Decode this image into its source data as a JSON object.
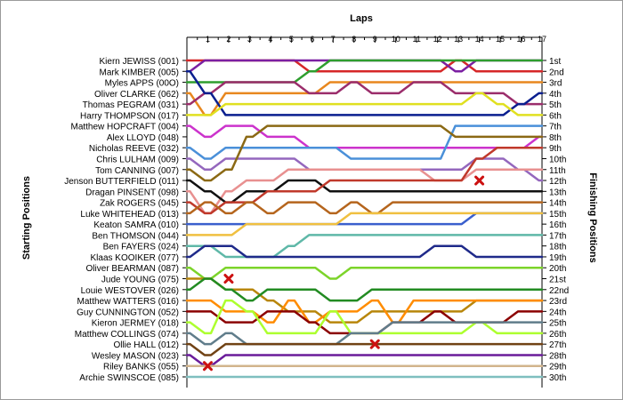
{
  "chart_data": {
    "type": "line",
    "title": "Laps",
    "ylabel_left": "Starting Positions",
    "ylabel_right": "Finishing Positions",
    "laps": [
      1,
      2,
      3,
      4,
      5,
      6,
      7,
      8,
      9,
      10,
      11,
      12,
      13,
      14,
      15,
      16,
      17
    ],
    "drivers": [
      "Kiern JEWISS (001)",
      "Mark KIMBER (005)",
      "Myles APPS (00O)",
      "Oliver CLARKE (062)",
      "Thomas PEGRAM (031)",
      "Harry THOMPSON (017)",
      "Matthew HOPCRAFT (004)",
      "Alex LLOYD (048)",
      "Nicholas REEVE (032)",
      "Chris LULHAM (009)",
      "Tom CANNING (007)",
      "Jenson BUTTERFIELD (011)",
      "Dragan PINSENT (098)",
      "Zak ROGERS (045)",
      "Luke WHITEHEAD (013)",
      "Keaton SAMRA (010)",
      "Ben THOMSON (044)",
      "Ben FAYERS (024)",
      "Klaas KOOIKER (077)",
      "Oliver BEARMAN (087)",
      "Jude YOUNG (075)",
      "Louie WESTOVER (026)",
      "Matthew WATTERS (016)",
      "Guy CUNNINGTON (052)",
      "Kieron JERMEY (018)",
      "Matthew COLLINGS (074)",
      "Ollie HALL (012)",
      "Wesley MASON (023)",
      "Riley BANKS (055)",
      "Archie SWINSCOE (085)"
    ],
    "finishing_positions": [
      "1st",
      "2nd",
      "3rd",
      "4th",
      "5th",
      "6th",
      "7th",
      "8th",
      "9th",
      "10th",
      "11th",
      "12th",
      "13th",
      "14th",
      "15th",
      "16th",
      "17th",
      "18th",
      "19th",
      "20th",
      "21st",
      "22nd",
      "23rd",
      "24th",
      "25th",
      "26th",
      "27th",
      "28th",
      "29th",
      "30th"
    ],
    "series": [
      {
        "color": "#d62728",
        "positions": [
          1,
          1,
          1,
          1,
          1,
          1,
          2,
          2,
          2,
          2,
          2,
          2,
          2,
          1,
          2,
          2,
          2,
          2
        ]
      },
      {
        "color": "#7b1fa2",
        "positions": [
          2,
          1,
          1,
          1,
          1,
          1,
          1,
          1,
          1,
          1,
          1,
          1,
          1,
          2,
          1,
          1,
          1,
          1
        ]
      },
      {
        "color": "#2e9e2e",
        "positions": [
          3,
          3,
          3,
          3,
          3,
          3,
          2,
          1,
          1,
          1,
          1,
          1,
          1,
          1,
          1,
          1,
          1,
          1
        ]
      },
      {
        "color": "#e8871e",
        "positions": [
          4,
          6,
          4,
          4,
          4,
          4,
          4,
          3,
          3,
          3,
          3,
          3,
          3,
          3,
          3,
          3,
          3,
          3
        ]
      },
      {
        "color": "#9b2d6b",
        "positions": [
          5,
          4,
          3,
          3,
          3,
          3,
          4,
          4,
          3,
          4,
          4,
          3,
          3,
          4,
          4,
          4,
          5,
          5
        ]
      },
      {
        "color": "#0a1f8f",
        "positions": [
          2,
          4,
          6,
          6,
          6,
          6,
          6,
          6,
          6,
          6,
          6,
          6,
          6,
          6,
          6,
          6,
          5,
          4
        ]
      },
      {
        "color": "#e0e020",
        "positions": [
          6,
          6,
          5,
          5,
          5,
          5,
          5,
          5,
          5,
          5,
          5,
          5,
          5,
          5,
          4,
          5,
          6,
          6
        ]
      },
      {
        "color": "#cc33cc",
        "positions": [
          7,
          8,
          7,
          7,
          8,
          8,
          9,
          9,
          9,
          9,
          9,
          9,
          9,
          9,
          9,
          9,
          9,
          8
        ]
      },
      {
        "color": "#4a90d9",
        "positions": [
          9,
          10,
          9,
          9,
          9,
          9,
          9,
          9,
          10,
          10,
          10,
          10,
          10,
          7,
          7,
          7,
          7,
          7
        ]
      },
      {
        "color": "#9467bd",
        "positions": [
          10,
          11,
          10,
          10,
          10,
          10,
          11,
          11,
          11,
          11,
          11,
          11,
          11,
          11,
          10,
          10,
          11,
          12
        ]
      },
      {
        "color": "#8b6914",
        "positions": [
          11,
          12,
          11,
          8,
          7,
          7,
          7,
          7,
          7,
          7,
          7,
          7,
          7,
          8,
          8,
          8,
          8,
          8
        ]
      },
      {
        "color": "#e89090",
        "positions": [
          13,
          15,
          13,
          12,
          12,
          11,
          11,
          11,
          11,
          11,
          11,
          11,
          12,
          12,
          11,
          11,
          11,
          11
        ]
      },
      {
        "color": "#111111",
        "positions": [
          12,
          13,
          14,
          13,
          13,
          12,
          12,
          13,
          13,
          13,
          13,
          13,
          13,
          13,
          13,
          13,
          13,
          13
        ]
      },
      {
        "color": "#c0392b",
        "positions": [
          14,
          15,
          14,
          14,
          13,
          13,
          13,
          12,
          12,
          12,
          12,
          12,
          12,
          12,
          10,
          9,
          9,
          9
        ]
      },
      {
        "color": "#b5651d",
        "positions": [
          15,
          14,
          15,
          14,
          15,
          14,
          14,
          15,
          14,
          15,
          14,
          14,
          14,
          14,
          14,
          14,
          14,
          14
        ]
      },
      {
        "color": "#3a5fcd",
        "positions": [
          16,
          16,
          16,
          16,
          16,
          16,
          16,
          16,
          16,
          16,
          16,
          16,
          16,
          16,
          15,
          15,
          15,
          15
        ]
      },
      {
        "color": "#f0c040",
        "positions": [
          17,
          17,
          17,
          16,
          16,
          16,
          16,
          16,
          15,
          15,
          15,
          15,
          15,
          15,
          15,
          15,
          15,
          15
        ]
      },
      {
        "color": "#5fb8a8",
        "positions": [
          18,
          18,
          19,
          19,
          19,
          18,
          17,
          17,
          17,
          17,
          17,
          17,
          17,
          17,
          17,
          17,
          17,
          17
        ]
      },
      {
        "color": "#1f2a8a",
        "positions": [
          19,
          18,
          18,
          19,
          19,
          19,
          19,
          19,
          19,
          19,
          19,
          19,
          18,
          18,
          19,
          19,
          19,
          19
        ]
      },
      {
        "color": "#7cd42a",
        "positions": [
          20,
          21,
          20,
          20,
          20,
          20,
          20,
          21,
          20,
          20,
          20,
          20,
          20,
          20,
          20,
          20,
          20,
          20
        ]
      },
      {
        "color": "#b8860b",
        "positions": [
          21,
          21,
          22,
          22,
          23,
          24,
          24,
          25,
          25,
          24,
          24,
          24,
          24,
          24,
          23,
          23,
          23,
          23
        ]
      },
      {
        "color": "#228b22",
        "positions": [
          22,
          21,
          22,
          23,
          22,
          22,
          22,
          23,
          23,
          22,
          22,
          22,
          22,
          22,
          22,
          22,
          22,
          22
        ]
      },
      {
        "color": "#ff8c00",
        "positions": [
          23,
          23,
          24,
          24,
          25,
          23,
          25,
          24,
          24,
          23,
          25,
          23,
          23,
          23,
          23,
          23,
          23,
          23
        ]
      },
      {
        "color": "#8b0000",
        "positions": [
          24,
          24,
          25,
          25,
          24,
          24,
          25,
          26,
          26,
          26,
          25,
          25,
          24,
          25,
          25,
          25,
          24,
          24
        ]
      },
      {
        "color": "#adff2f",
        "positions": [
          25,
          26,
          23,
          24,
          26,
          26,
          26,
          24,
          26,
          26,
          26,
          26,
          26,
          26,
          25,
          26,
          26,
          26
        ]
      },
      {
        "color": "#607d8b",
        "positions": [
          26,
          27,
          26,
          27,
          27,
          27,
          27,
          27,
          26,
          26,
          25,
          25,
          25,
          25,
          25,
          25,
          25,
          25
        ]
      },
      {
        "color": "#704214",
        "positions": [
          27,
          28,
          27,
          27,
          27,
          27,
          27,
          27,
          27,
          27,
          27,
          27,
          27,
          27,
          27,
          27,
          27,
          27
        ]
      },
      {
        "color": "#6a1b9a",
        "positions": [
          28,
          29,
          28,
          28,
          28,
          28,
          28,
          28,
          28,
          28,
          28,
          28,
          28,
          28,
          28,
          28,
          28,
          28
        ]
      },
      {
        "color": "#d2b48c",
        "positions": [
          29,
          29,
          29,
          29,
          29,
          29,
          29,
          29,
          29,
          29,
          29,
          29,
          29,
          29,
          29,
          29,
          29,
          29
        ]
      },
      {
        "color": "#7fbfbf",
        "positions": [
          30,
          30,
          30,
          30,
          30,
          30,
          30,
          30,
          30,
          30,
          30,
          30,
          30,
          30,
          30,
          30,
          30,
          30
        ]
      }
    ],
    "retirements": [
      {
        "lap": 2,
        "position": 21
      },
      {
        "lap": 1,
        "position": 29
      },
      {
        "lap": 9,
        "position": 27
      },
      {
        "lap": 14,
        "position": 12
      }
    ],
    "grid": false
  }
}
